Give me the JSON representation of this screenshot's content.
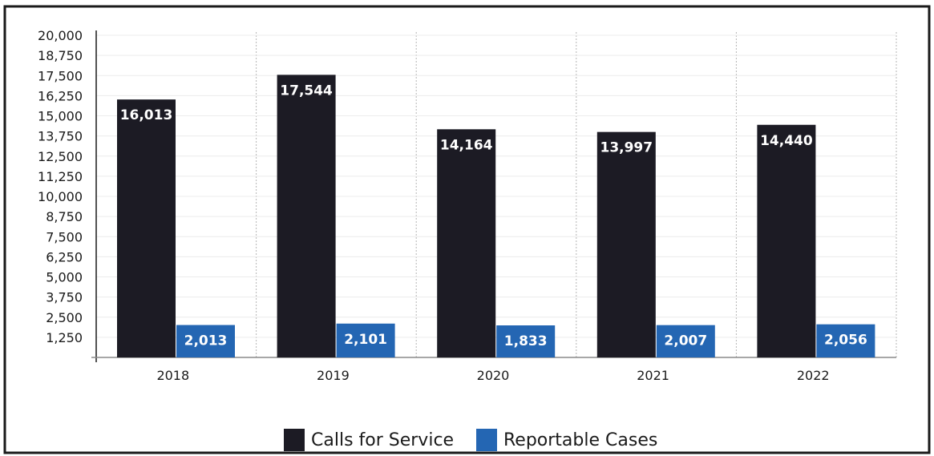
{
  "chart_data": {
    "type": "bar",
    "categories": [
      "2018",
      "2019",
      "2020",
      "2021",
      "2022"
    ],
    "series": [
      {
        "name": "Calls for Service",
        "values": [
          16013,
          17544,
          14164,
          13997,
          14440
        ],
        "labels": [
          "16,013",
          "17,544",
          "14,164",
          "13,997",
          "14,440"
        ],
        "color": "#1c1b24"
      },
      {
        "name": "Reportable Cases",
        "values": [
          2013,
          2101,
          1833,
          2007,
          2056
        ],
        "labels": [
          "2,013",
          "2,101",
          "1,833",
          "2,007",
          "2,056"
        ],
        "color": "#2466b3"
      }
    ],
    "yticks": [
      "20,000",
      "18,750",
      "17,500",
      "16,250",
      "15,000",
      "13,750",
      "12,500",
      "11,250",
      "10,000",
      "8,750",
      "7,500",
      "6,250",
      "5,000",
      "3,750",
      "2,500",
      "1,250"
    ],
    "ytick_values": [
      20000,
      18750,
      17500,
      16250,
      15000,
      13750,
      12500,
      11250,
      10000,
      8750,
      7500,
      6250,
      5000,
      3750,
      2500,
      1250
    ],
    "ylim": [
      0,
      20000
    ],
    "grid": "vertical-dotted",
    "legend": "bottom-center",
    "title": "",
    "xlabel": "",
    "ylabel": ""
  }
}
